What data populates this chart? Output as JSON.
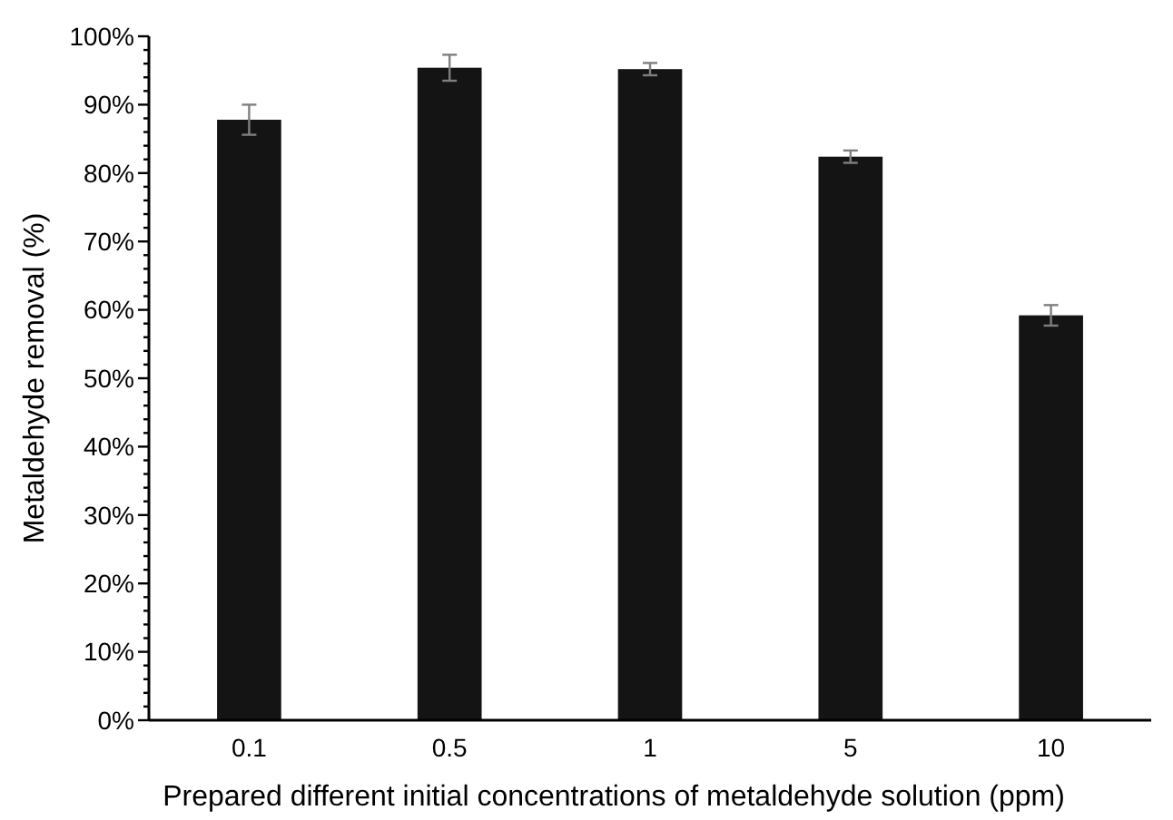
{
  "chart_data": {
    "type": "bar",
    "xlabel": "Prepared different initial concentrations of metaldehyde solution (ppm)",
    "ylabel": "Metaldehyde removal (%)",
    "categories": [
      "0.1",
      "0.5",
      "1",
      "5",
      "10"
    ],
    "values": [
      87.8,
      95.4,
      95.2,
      82.4,
      59.2
    ],
    "errors": [
      2.2,
      1.9,
      0.9,
      0.9,
      1.5
    ],
    "color": "#141414",
    "ylim": [
      0,
      100
    ],
    "yticks": [
      {
        "value": 0,
        "label": "0%"
      },
      {
        "value": 2,
        "label": null
      },
      {
        "value": 4,
        "label": null
      },
      {
        "value": 6,
        "label": null
      },
      {
        "value": 8,
        "label": null
      },
      {
        "value": 10,
        "label": "10%"
      },
      {
        "value": 12,
        "label": null
      },
      {
        "value": 14,
        "label": null
      },
      {
        "value": 16,
        "label": null
      },
      {
        "value": 18,
        "label": null
      },
      {
        "value": 20,
        "label": "20%"
      },
      {
        "value": 22,
        "label": null
      },
      {
        "value": 24,
        "label": null
      },
      {
        "value": 26,
        "label": null
      },
      {
        "value": 28,
        "label": null
      },
      {
        "value": 30,
        "label": "30%"
      },
      {
        "value": 32,
        "label": null
      },
      {
        "value": 34,
        "label": null
      },
      {
        "value": 36,
        "label": null
      },
      {
        "value": 38,
        "label": null
      },
      {
        "value": 40,
        "label": "40%"
      },
      {
        "value": 42,
        "label": null
      },
      {
        "value": 44,
        "label": null
      },
      {
        "value": 46,
        "label": null
      },
      {
        "value": 48,
        "label": null
      },
      {
        "value": 50,
        "label": "50%"
      },
      {
        "value": 52,
        "label": null
      },
      {
        "value": 54,
        "label": null
      },
      {
        "value": 56,
        "label": null
      },
      {
        "value": 58,
        "label": null
      },
      {
        "value": 60,
        "label": "60%"
      },
      {
        "value": 62,
        "label": null
      },
      {
        "value": 64,
        "label": null
      },
      {
        "value": 66,
        "label": null
      },
      {
        "value": 68,
        "label": null
      },
      {
        "value": 70,
        "label": "70%"
      },
      {
        "value": 72,
        "label": null
      },
      {
        "value": 74,
        "label": null
      },
      {
        "value": 76,
        "label": null
      },
      {
        "value": 78,
        "label": null
      },
      {
        "value": 80,
        "label": "80%"
      },
      {
        "value": 82,
        "label": null
      },
      {
        "value": 84,
        "label": null
      },
      {
        "value": 86,
        "label": null
      },
      {
        "value": 88,
        "label": null
      },
      {
        "value": 90,
        "label": "90%"
      },
      {
        "value": 92,
        "label": null
      },
      {
        "value": 94,
        "label": null
      },
      {
        "value": 96,
        "label": null
      },
      {
        "value": 98,
        "label": null
      },
      {
        "value": 100,
        "label": "100%"
      }
    ],
    "grid": false
  }
}
